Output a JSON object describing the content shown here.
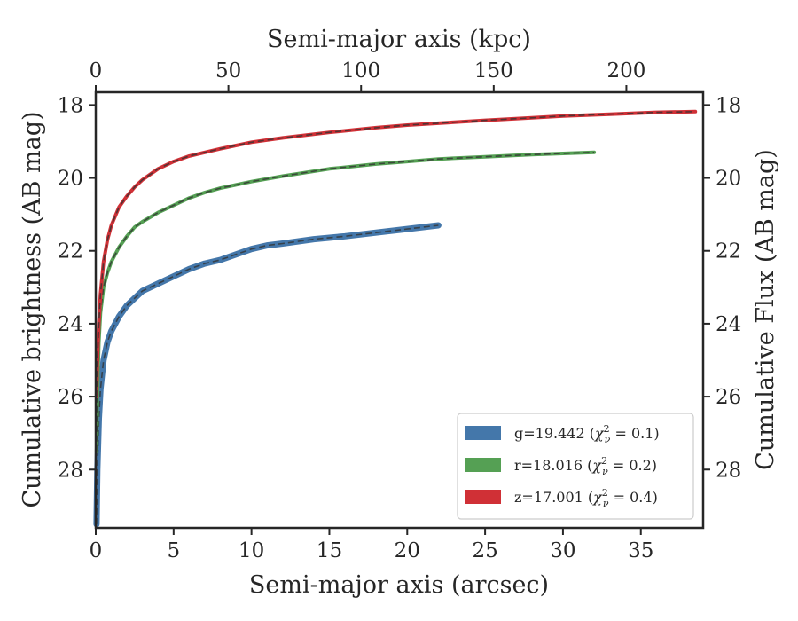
{
  "chart_data": {
    "type": "line",
    "xlabel_bottom": "Semi-major axis (arcsec)",
    "xlabel_top": "Semi-major axis (kpc)",
    "ylabel_left": "Cumulative brightness (AB mag)",
    "ylabel_right": "Cumulative Flux (AB mag)",
    "xlim": [
      0,
      39
    ],
    "ylim": [
      29.6,
      17.65
    ],
    "y_inverted": true,
    "kpc_per_arcsec": 5.87,
    "x_ticks": [
      0,
      5,
      10,
      15,
      20,
      25,
      30,
      35
    ],
    "x_top_ticks": [
      0,
      50,
      100,
      150,
      200
    ],
    "y_ticks": [
      18,
      20,
      22,
      24,
      26,
      28
    ],
    "grid": false,
    "legend_position": "lower-right",
    "series": [
      {
        "name": "g=19.442 ($\\chi^2_\\nu = 0.1$)",
        "legend_main": "g=19.442 (",
        "legend_chi": "χ",
        "legend_sub": "ν",
        "legend_sup": "2",
        "legend_tail": " = 0.1)",
        "color": "#4477aa",
        "x": [
          0.05,
          0.1,
          0.2,
          0.3,
          0.5,
          0.75,
          1.0,
          1.5,
          2.0,
          2.5,
          3.0,
          4.0,
          5.0,
          6.0,
          7.0,
          8.0,
          9.0,
          10.0,
          11.0,
          12.0,
          14.0,
          16.0,
          18.0,
          20.0,
          22.0
        ],
        "y": [
          29.5,
          28.0,
          26.6,
          25.8,
          25.0,
          24.5,
          24.2,
          23.8,
          23.5,
          23.3,
          23.1,
          22.9,
          22.7,
          22.5,
          22.35,
          22.25,
          22.1,
          21.95,
          21.85,
          21.8,
          21.68,
          21.6,
          21.5,
          21.4,
          21.3
        ]
      },
      {
        "name": "r=18.016 ($\\chi^2_\\nu = 0.2$)",
        "legend_main": "r=18.016 (",
        "legend_chi": "χ",
        "legend_sub": "ν",
        "legend_sup": "2",
        "legend_tail": " = 0.2)",
        "color": "#55a054",
        "x": [
          0.05,
          0.1,
          0.2,
          0.3,
          0.5,
          0.75,
          1.0,
          1.5,
          2.0,
          2.5,
          3.0,
          4.0,
          5.0,
          6.0,
          7.0,
          8.0,
          10.0,
          12.0,
          15.0,
          18.0,
          20.0,
          22.0,
          25.0,
          28.0,
          30.0,
          32.0
        ],
        "y": [
          27.5,
          26.0,
          24.5,
          23.7,
          23.0,
          22.6,
          22.3,
          21.9,
          21.6,
          21.35,
          21.2,
          20.95,
          20.75,
          20.55,
          20.4,
          20.28,
          20.1,
          19.95,
          19.75,
          19.62,
          19.55,
          19.48,
          19.42,
          19.36,
          19.33,
          19.3
        ]
      },
      {
        "name": "z=17.001 ($\\chi^2_\\nu = 0.4$)",
        "legend_main": "z=17.001 (",
        "legend_chi": "χ",
        "legend_sub": "ν",
        "legend_sup": "2",
        "legend_tail": " = 0.4)",
        "color": "#d03036",
        "x": [
          0.05,
          0.1,
          0.2,
          0.3,
          0.5,
          0.75,
          1.0,
          1.5,
          2.0,
          2.5,
          3.0,
          4.0,
          5.0,
          6.0,
          8.0,
          10.0,
          12.0,
          15.0,
          18.0,
          20.0,
          22.0,
          25.0,
          28.0,
          30.0,
          33.0,
          36.0,
          38.5
        ],
        "y": [
          26.0,
          25.0,
          24.0,
          23.2,
          22.3,
          21.7,
          21.3,
          20.8,
          20.5,
          20.25,
          20.05,
          19.75,
          19.55,
          19.4,
          19.2,
          19.02,
          18.9,
          18.75,
          18.62,
          18.55,
          18.5,
          18.42,
          18.35,
          18.3,
          18.25,
          18.2,
          18.18
        ]
      }
    ]
  }
}
